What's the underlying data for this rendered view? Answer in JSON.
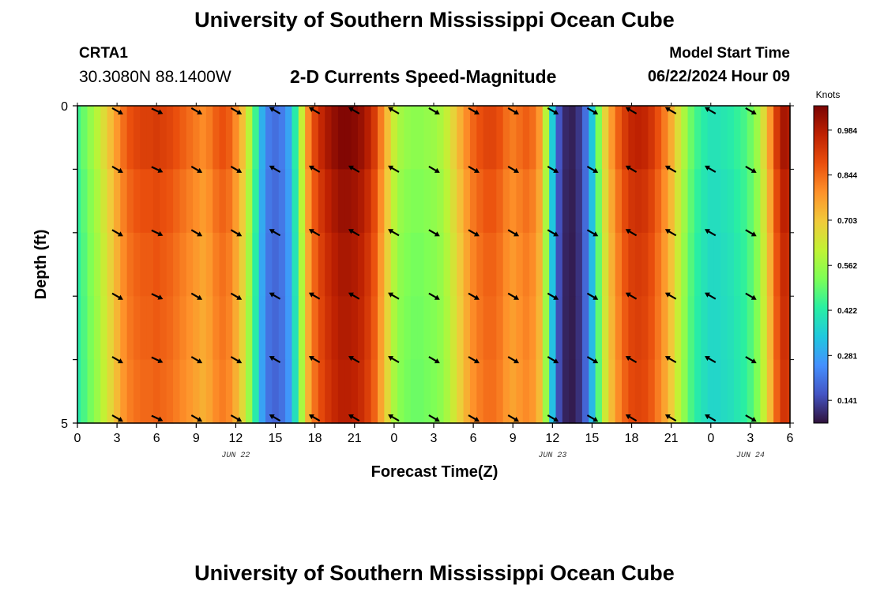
{
  "header": {
    "title": "University of Southern Mississippi Ocean Cube",
    "station": "CRTA1",
    "coords": "30.3080N  88.1400W",
    "subtitle": "2-D Currents Speed-Magnitude",
    "model_start_label": "Model Start Time",
    "model_start_value": "06/22/2024 Hour 09"
  },
  "footer": {
    "title": "University of Southern Mississippi Ocean Cube"
  },
  "chart_data": {
    "type": "heatmap",
    "title": "2-D Currents Speed-Magnitude",
    "xlabel": "Forecast Time(Z)",
    "ylabel": "Depth (ft)",
    "x_range_hours": [
      0,
      54
    ],
    "y_range": [
      0,
      5
    ],
    "xticks": [
      "0",
      "3",
      "6",
      "9",
      "12",
      "15",
      "18",
      "21",
      "0",
      "3",
      "6",
      "9",
      "12",
      "15",
      "18",
      "21",
      "0",
      "3",
      "6"
    ],
    "y_tick_labels": [
      "0",
      "5"
    ],
    "date_labels": [
      {
        "label": "JUN 22",
        "hour": 12
      },
      {
        "label": "JUN 23",
        "hour": 36
      },
      {
        "label": "JUN 24",
        "hour": 51
      }
    ],
    "colorbar": {
      "label": "Knots",
      "range": [
        0.07,
        1.06
      ],
      "ticks": [
        "0.141",
        "0.281",
        "0.422",
        "0.562",
        "0.703",
        "0.844",
        "0.984"
      ],
      "colors": [
        "#30123b",
        "#4454c4",
        "#4490fe",
        "#1fc8de",
        "#29efa2",
        "#7dff56",
        "#c1f334",
        "#f1ca3a",
        "#fe922a",
        "#ea4f0d",
        "#be2102",
        "#7a0403"
      ]
    },
    "speed_profile": {
      "hours": [
        0,
        0.5,
        1,
        1.5,
        2,
        2.5,
        3,
        3.5,
        4,
        4.5,
        5,
        5.5,
        6,
        6.5,
        7,
        7.5,
        8,
        8.5,
        9,
        9.5,
        10,
        10.5,
        11,
        11.5,
        12,
        12.5,
        13,
        13.5,
        14,
        14.5,
        15,
        15.5,
        16,
        16.5,
        17,
        17.5,
        18,
        18.5,
        19,
        19.5,
        20,
        20.5,
        21,
        21.5,
        22,
        22.5,
        23,
        23.5,
        24,
        24.5,
        25,
        25.5,
        26,
        26.5,
        27,
        27.5,
        28,
        28.5,
        29,
        29.5,
        30,
        30.5,
        31,
        31.5,
        32,
        32.5,
        33,
        33.5,
        34,
        34.5,
        35,
        35.5,
        36,
        36.5,
        37,
        37.5,
        38,
        38.5,
        39,
        39.5,
        40,
        40.5,
        41,
        41.5,
        42,
        42.5,
        43,
        43.5,
        44,
        44.5,
        45,
        45.5,
        46,
        46.5,
        47,
        47.5,
        48,
        48.5,
        49,
        49.5,
        50,
        50.5,
        51,
        51.5,
        52,
        52.5,
        53,
        53.5,
        54
      ],
      "values": [
        0.45,
        0.5,
        0.55,
        0.6,
        0.66,
        0.72,
        0.78,
        0.84,
        0.88,
        0.9,
        0.91,
        0.91,
        0.92,
        0.91,
        0.9,
        0.88,
        0.86,
        0.84,
        0.82,
        0.8,
        0.82,
        0.86,
        0.88,
        0.86,
        0.8,
        0.72,
        0.6,
        0.45,
        0.3,
        0.22,
        0.2,
        0.22,
        0.28,
        0.42,
        0.62,
        0.8,
        0.9,
        0.96,
        1.0,
        1.03,
        1.05,
        1.05,
        1.04,
        1.02,
        0.98,
        0.92,
        0.82,
        0.72,
        0.62,
        0.57,
        0.55,
        0.54,
        0.54,
        0.55,
        0.56,
        0.58,
        0.62,
        0.68,
        0.74,
        0.8,
        0.85,
        0.88,
        0.9,
        0.9,
        0.88,
        0.84,
        0.82,
        0.84,
        0.86,
        0.84,
        0.78,
        0.6,
        0.35,
        0.16,
        0.1,
        0.09,
        0.12,
        0.2,
        0.34,
        0.52,
        0.68,
        0.78,
        0.86,
        0.92,
        0.96,
        0.97,
        0.96,
        0.93,
        0.88,
        0.82,
        0.75,
        0.66,
        0.58,
        0.5,
        0.45,
        0.42,
        0.4,
        0.4,
        0.41,
        0.42,
        0.44,
        0.46,
        0.5,
        0.56,
        0.66,
        0.78,
        0.92,
        1.0,
        0.99
      ],
      "depth_factors": [
        1.0,
        0.97,
        0.95,
        0.94,
        0.93
      ]
    },
    "vectors": {
      "hours": [
        3,
        6,
        9,
        12,
        15,
        18,
        21,
        24,
        27,
        30,
        33,
        36,
        39,
        42,
        45,
        48,
        51
      ],
      "direction_deg": [
        120,
        115,
        120,
        120,
        300,
        300,
        300,
        300,
        120,
        120,
        120,
        120,
        120,
        300,
        300,
        300,
        120
      ]
    }
  }
}
